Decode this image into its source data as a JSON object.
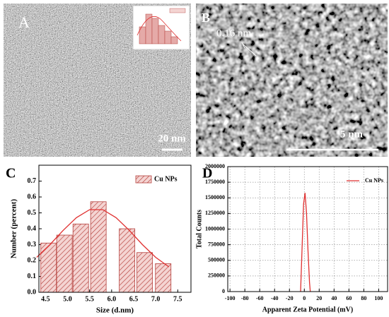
{
  "figure": {
    "panel_a": {
      "label": "A",
      "scale_bar": "20 nm"
    },
    "panel_b": {
      "label": "B",
      "scale_bar": "5 nm",
      "annotation": "0.16 nm"
    }
  },
  "chart_data": [
    {
      "type": "bar",
      "label": "C",
      "xlabel": "Size (d.nm)",
      "ylabel": "Number (percent)",
      "xlim": [
        4.35,
        7.8
      ],
      "ylim": [
        0,
        0.8
      ],
      "xticks": [
        4.5,
        {
          "value": 5,
          "label": "5.0"
        },
        5.5,
        {
          "value": 6,
          "label": "6.0"
        },
        6.5,
        {
          "value": 7,
          "label": "7.0"
        },
        7.5
      ],
      "yticks": [
        {
          "value": 0,
          "label": "0.0"
        },
        0.1,
        0.2,
        0.3,
        0.4,
        0.5,
        0.6,
        0.7
      ],
      "grid": false,
      "legend": "upper right",
      "series": [
        {
          "name": "Cu NPs",
          "type": "bar",
          "color": "#b5403c",
          "x": [
            4.57,
            4.93,
            5.3,
            5.7,
            6.35,
            6.75,
            7.17
          ],
          "values": [
            0.31,
            0.36,
            0.43,
            0.57,
            0.4,
            0.25,
            0.18
          ]
        },
        {
          "type": "line",
          "color": "#e03030",
          "x": [
            4.3,
            4.6,
            4.9,
            5.2,
            5.5,
            5.8,
            6.1,
            6.4,
            6.7,
            7.0,
            7.3
          ],
          "values": [
            0.22,
            0.3,
            0.39,
            0.47,
            0.52,
            0.52,
            0.47,
            0.39,
            0.3,
            0.22,
            0.16
          ]
        }
      ]
    },
    {
      "type": "line",
      "label": "D",
      "xlabel": "Apparent Zeta Potential (mV)",
      "ylabel": "Total Counts",
      "xlim": [
        -103,
        112
      ],
      "ylim": [
        0,
        2000000
      ],
      "xticks": [
        -100,
        -80,
        -60,
        -40,
        -20,
        0,
        20,
        40,
        60,
        80,
        100
      ],
      "yticks": [
        0,
        250000,
        500000,
        750000,
        1000000,
        1250000,
        1500000,
        1750000,
        2000000
      ],
      "grid": true,
      "legend": "upper right",
      "series": [
        {
          "name": "Cu NPs",
          "type": "line",
          "color": "#e03030",
          "x": [
            -5,
            -3,
            -1,
            1,
            3,
            5,
            7,
            8
          ],
          "values": [
            0,
            700000,
            1400000,
            1580000,
            1250000,
            650000,
            150000,
            0
          ]
        }
      ]
    }
  ]
}
